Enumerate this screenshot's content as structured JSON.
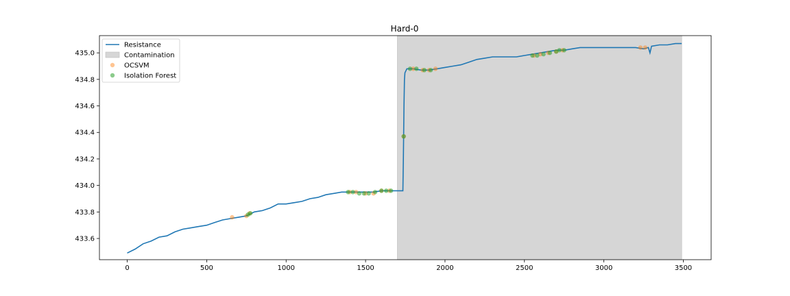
{
  "chart_data": {
    "type": "line",
    "title": "Hard-0",
    "xlabel": "",
    "ylabel": "",
    "xlim": [
      -175,
      3675
    ],
    "ylim": [
      433.44,
      435.13
    ],
    "xticks": [
      0,
      500,
      1000,
      1500,
      2000,
      2500,
      3000,
      3500
    ],
    "yticks": [
      433.6,
      433.8,
      434.0,
      434.2,
      434.4,
      434.6,
      434.8,
      435.0
    ],
    "ytick_labels": [
      "433.6",
      "433.8",
      "434.0",
      "434.2",
      "434.4",
      "434.6",
      "434.8",
      "435.0"
    ],
    "legend_position": "top-left",
    "grid": false,
    "contamination": {
      "name": "Contamination",
      "x_start": 1700,
      "x_end": 3490,
      "color": "#d6d6d6"
    },
    "series": [
      {
        "name": "Resistance",
        "color": "#1f77b4",
        "x": [
          0,
          50,
          100,
          150,
          200,
          250,
          300,
          350,
          400,
          450,
          500,
          550,
          600,
          650,
          700,
          750,
          800,
          850,
          900,
          950,
          1000,
          1050,
          1100,
          1150,
          1200,
          1250,
          1300,
          1350,
          1400,
          1450,
          1500,
          1550,
          1600,
          1650,
          1700,
          1735,
          1738,
          1742,
          1745,
          1748,
          1752,
          1760,
          1800,
          1850,
          1900,
          1950,
          2000,
          2050,
          2100,
          2150,
          2200,
          2250,
          2300,
          2350,
          2400,
          2450,
          2500,
          2550,
          2600,
          2650,
          2700,
          2750,
          2800,
          2850,
          2900,
          2950,
          3000,
          3050,
          3100,
          3150,
          3200,
          3250,
          3280,
          3290,
          3300,
          3350,
          3400,
          3450,
          3490
        ],
        "y": [
          433.49,
          433.52,
          433.56,
          433.58,
          433.61,
          433.62,
          433.65,
          433.67,
          433.68,
          433.69,
          433.7,
          433.72,
          433.74,
          433.75,
          433.76,
          433.77,
          433.8,
          433.81,
          433.83,
          433.86,
          433.86,
          433.87,
          433.88,
          433.9,
          433.91,
          433.93,
          433.94,
          433.95,
          433.95,
          433.95,
          433.95,
          433.95,
          433.96,
          433.96,
          433.96,
          433.96,
          434.2,
          434.6,
          434.8,
          434.85,
          434.86,
          434.88,
          434.88,
          434.87,
          434.87,
          434.88,
          434.89,
          434.9,
          434.91,
          434.93,
          434.95,
          434.96,
          434.97,
          434.97,
          434.97,
          434.97,
          434.98,
          434.99,
          435.0,
          435.01,
          435.02,
          435.02,
          435.03,
          435.04,
          435.04,
          435.04,
          435.04,
          435.04,
          435.04,
          435.04,
          435.04,
          435.03,
          435.04,
          435.0,
          435.05,
          435.06,
          435.06,
          435.07,
          435.07
        ]
      },
      {
        "name": "OCSVM",
        "color": "#ff7f0e",
        "points": [
          [
            660,
            433.76
          ],
          [
            750,
            433.77
          ],
          [
            770,
            433.79
          ],
          [
            1400,
            433.95
          ],
          [
            1440,
            433.95
          ],
          [
            1500,
            433.94
          ],
          [
            1550,
            433.94
          ],
          [
            1600,
            433.96
          ],
          [
            1650,
            433.96
          ],
          [
            1740,
            434.37
          ],
          [
            1800,
            434.88
          ],
          [
            1860,
            434.87
          ],
          [
            1900,
            434.87
          ],
          [
            1940,
            434.88
          ],
          [
            2560,
            434.98
          ],
          [
            2600,
            434.99
          ],
          [
            2650,
            435.0
          ],
          [
            2700,
            435.01
          ],
          [
            2740,
            435.02
          ],
          [
            3230,
            435.04
          ],
          [
            3260,
            435.04
          ]
        ]
      },
      {
        "name": "Isolation Forest",
        "color": "#2ca02c",
        "points": [
          [
            760,
            433.78
          ],
          [
            775,
            433.79
          ],
          [
            1390,
            433.95
          ],
          [
            1420,
            433.95
          ],
          [
            1460,
            433.94
          ],
          [
            1490,
            433.94
          ],
          [
            1520,
            433.94
          ],
          [
            1560,
            433.95
          ],
          [
            1600,
            433.96
          ],
          [
            1630,
            433.96
          ],
          [
            1660,
            433.96
          ],
          [
            1740,
            434.37
          ],
          [
            1780,
            434.88
          ],
          [
            1820,
            434.88
          ],
          [
            1870,
            434.87
          ],
          [
            1910,
            434.87
          ],
          [
            2550,
            434.98
          ],
          [
            2580,
            434.98
          ],
          [
            2620,
            434.99
          ],
          [
            2660,
            435.0
          ],
          [
            2700,
            435.01
          ],
          [
            2720,
            435.02
          ],
          [
            2750,
            435.02
          ]
        ]
      }
    ]
  }
}
